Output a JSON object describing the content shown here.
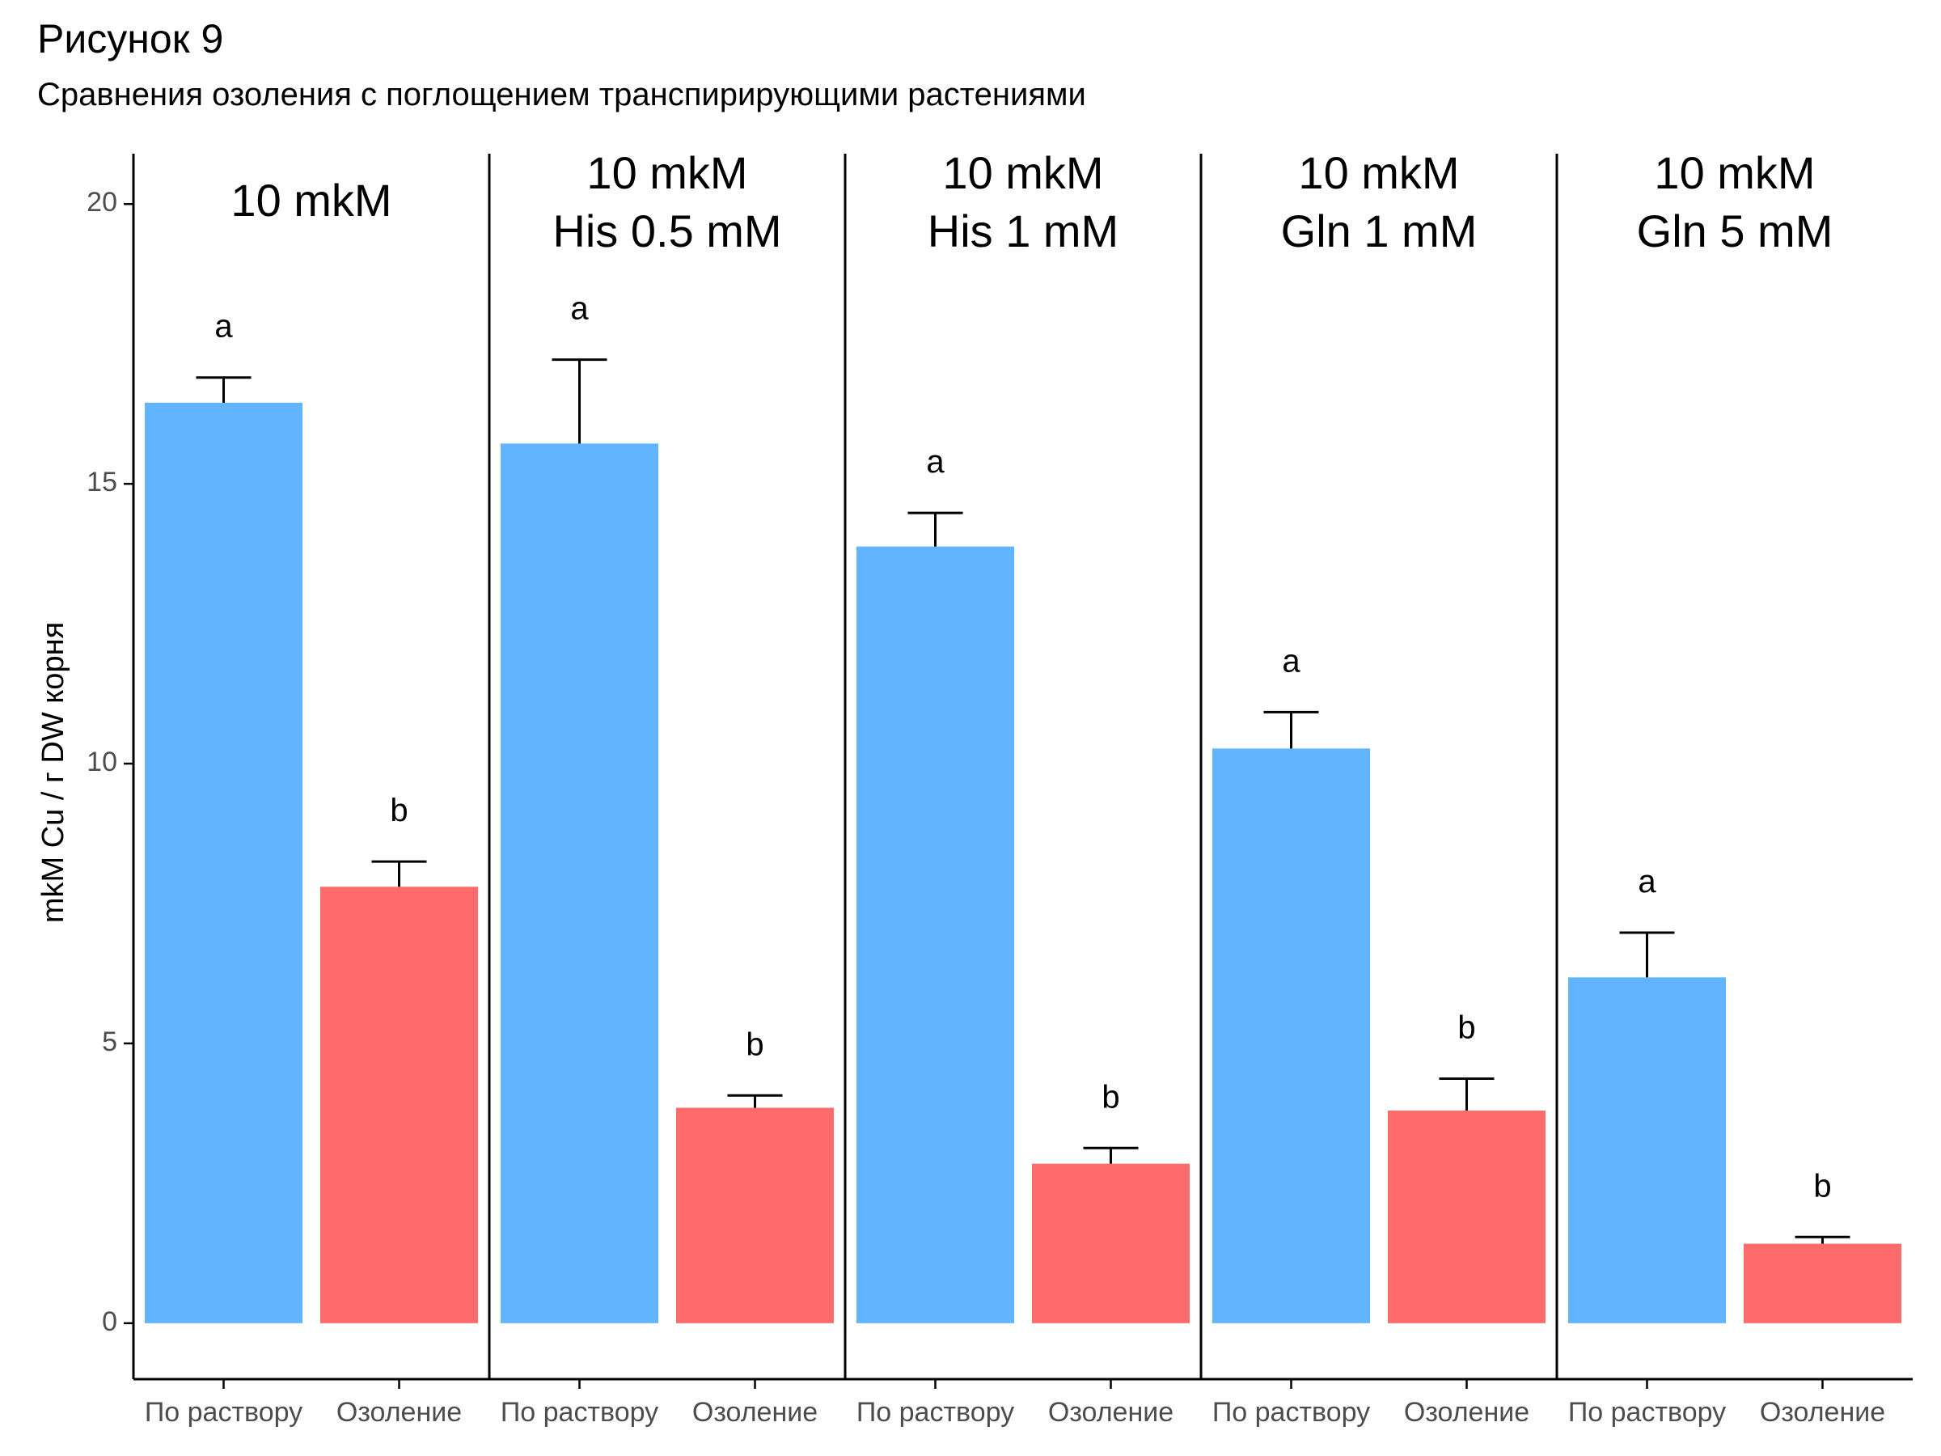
{
  "figure": {
    "title": "Рисунок 9",
    "subtitle": "Сравнения озоления с поглощением транспирирующими растениями"
  },
  "colors": {
    "blue": "#61B5FF",
    "red": "#FF6B6B",
    "axis": "#000000",
    "tick_text": "#4D4D4D"
  },
  "chart_data": {
    "type": "bar",
    "title": "Рисунок 9",
    "subtitle": "Сравнения озоления с поглощением транспирирующими растениями",
    "ylabel": "mkM Cu / г DW корня",
    "xlabel": "",
    "ylim": [
      -1,
      20.9
    ],
    "yticks": [
      0,
      5,
      10,
      15,
      20
    ],
    "grid": false,
    "legend": "none",
    "categories": [
      "По раствору",
      "Озоление"
    ],
    "panels": [
      {
        "label": [
          "10 mkM"
        ],
        "bars": [
          {
            "category": "По раствору",
            "value": 16.45,
            "error": 0.45,
            "letter": "a",
            "color": "blue"
          },
          {
            "category": "Озоление",
            "value": 7.8,
            "error": 0.45,
            "letter": "b",
            "color": "red"
          }
        ]
      },
      {
        "label": [
          "10 mkM",
          "His 0.5 mM"
        ],
        "bars": [
          {
            "category": "По раствору",
            "value": 15.72,
            "error": 1.5,
            "letter": "a",
            "color": "blue"
          },
          {
            "category": "Озоление",
            "value": 3.85,
            "error": 0.22,
            "letter": "b",
            "color": "red"
          }
        ]
      },
      {
        "label": [
          "10 mkM",
          "His 1 mM"
        ],
        "bars": [
          {
            "category": "По раствору",
            "value": 13.88,
            "error": 0.6,
            "letter": "a",
            "color": "blue"
          },
          {
            "category": "Озоление",
            "value": 2.85,
            "error": 0.28,
            "letter": "b",
            "color": "red"
          }
        ]
      },
      {
        "label": [
          "10 mkM",
          "Gln 1 mM"
        ],
        "bars": [
          {
            "category": "По раствору",
            "value": 10.27,
            "error": 0.65,
            "letter": "a",
            "color": "blue"
          },
          {
            "category": "Озоление",
            "value": 3.8,
            "error": 0.57,
            "letter": "b",
            "color": "red"
          }
        ]
      },
      {
        "label": [
          "10 mkM",
          "Gln 5 mM"
        ],
        "bars": [
          {
            "category": "По раствору",
            "value": 6.18,
            "error": 0.8,
            "letter": "a",
            "color": "blue"
          },
          {
            "category": "Озоление",
            "value": 1.42,
            "error": 0.12,
            "letter": "b",
            "color": "red"
          }
        ]
      }
    ]
  }
}
